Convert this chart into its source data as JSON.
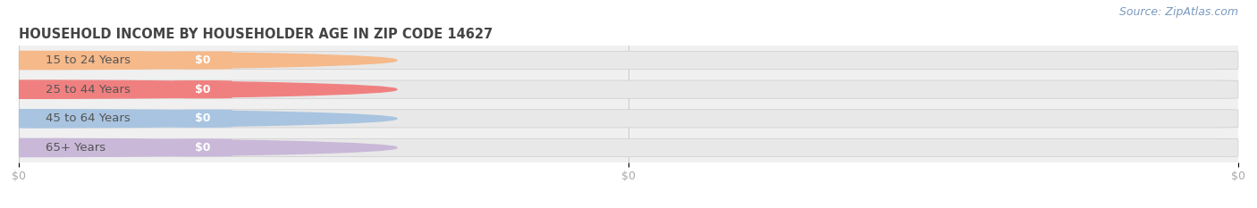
{
  "title": "HOUSEHOLD INCOME BY HOUSEHOLDER AGE IN ZIP CODE 14627",
  "source": "Source: ZipAtlas.com",
  "categories": [
    "15 to 24 Years",
    "25 to 44 Years",
    "45 to 64 Years",
    "65+ Years"
  ],
  "values": [
    0,
    0,
    0,
    0
  ],
  "bar_colors": [
    "#f5b98a",
    "#f08080",
    "#a8c4e0",
    "#c9b8d8"
  ],
  "background_color": "#ffffff",
  "plot_bg_color": "#f0f0f0",
  "bar_bg_color": "#e8e8e8",
  "white_pill_color": "#ffffff",
  "title_color": "#444444",
  "label_color": "#555555",
  "tick_label_color": "#aaaaaa",
  "source_color": "#7a9abf",
  "title_fontsize": 10.5,
  "label_fontsize": 9.5,
  "tick_fontsize": 9,
  "source_fontsize": 9
}
